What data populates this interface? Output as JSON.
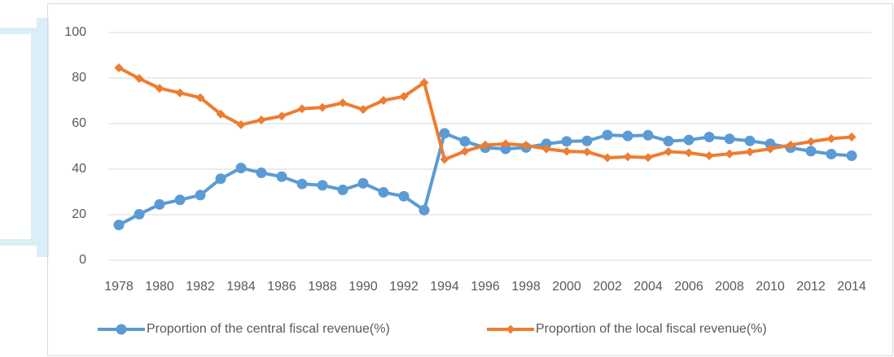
{
  "chart_data": {
    "type": "line",
    "categories": [
      "1978",
      null,
      "1980",
      null,
      "1982",
      null,
      "1984",
      null,
      "1986",
      null,
      "1988",
      null,
      "1990",
      null,
      "1992",
      null,
      "1994",
      null,
      "1996",
      null,
      "1998",
      null,
      "2000",
      null,
      "2002",
      null,
      "2004",
      null,
      "2006",
      null,
      "2008",
      null,
      "2010",
      null,
      "2012",
      null,
      "2014"
    ],
    "series": [
      {
        "name": "Proportion of the central fiscal revenue(%)",
        "color": "#5b9bd5",
        "marker": "circle",
        "values": [
          15.5,
          20.2,
          24.5,
          26.5,
          28.6,
          35.8,
          40.5,
          38.4,
          36.7,
          33.5,
          32.9,
          30.9,
          33.8,
          29.8,
          28.1,
          22.0,
          55.7,
          52.2,
          49.4,
          48.9,
          49.5,
          51.1,
          52.2,
          52.4,
          55.0,
          54.6,
          54.9,
          52.3,
          52.8,
          54.1,
          53.3,
          52.4,
          51.1,
          49.4,
          47.9,
          46.6,
          45.9
        ]
      },
      {
        "name": "Proportion of the local fiscal revenue(%)",
        "color": "#ed7d31",
        "marker": "diamond",
        "values": [
          84.5,
          79.8,
          75.5,
          73.5,
          71.4,
          64.2,
          59.5,
          61.6,
          63.3,
          66.5,
          67.1,
          69.1,
          66.2,
          70.2,
          71.9,
          78.0,
          44.3,
          47.8,
          50.6,
          51.1,
          50.5,
          48.9,
          47.8,
          47.6,
          45.0,
          45.4,
          45.1,
          47.7,
          47.2,
          45.9,
          46.7,
          47.6,
          48.9,
          50.6,
          52.1,
          53.4,
          54.1
        ]
      }
    ],
    "ylim": [
      0,
      100
    ],
    "yticks": [
      0,
      20,
      40,
      60,
      80,
      100
    ],
    "grid": true,
    "legend": "bottom"
  }
}
